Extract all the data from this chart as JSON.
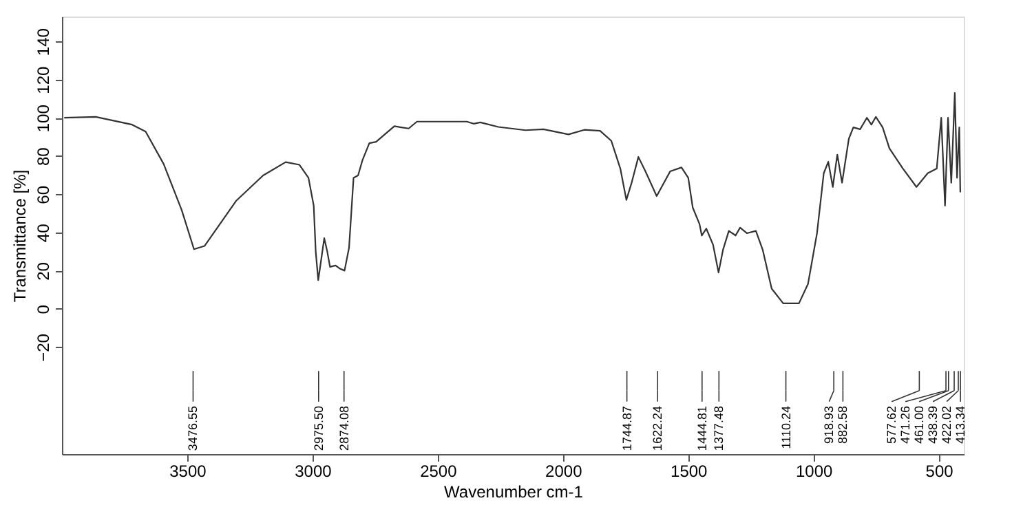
{
  "chart_data": {
    "type": "line",
    "xlabel": "Wavenumber cm-1",
    "ylabel": "Transmittance [%]",
    "xlim": [
      4000,
      400
    ],
    "ylim": [
      -76,
      153
    ],
    "xticks": [
      3500,
      3000,
      2500,
      2000,
      1500,
      1000,
      500
    ],
    "yticks": [
      -20,
      0,
      20,
      40,
      60,
      80,
      100,
      120,
      140
    ],
    "grid": false,
    "marker": "none",
    "line_style": "solid",
    "x": [
      3991,
      3865,
      3720,
      3666,
      3594,
      3522,
      3473,
      3431,
      3305,
      3197,
      3107,
      3052,
      3016,
      2995,
      2987,
      2977,
      2966,
      2953,
      2941,
      2930,
      2908,
      2890,
      2872,
      2854,
      2836,
      2818,
      2800,
      2773,
      2746,
      2710,
      2673,
      2646,
      2616,
      2583,
      2384,
      2357,
      2330,
      2258,
      2150,
      2078,
      1978,
      1915,
      1852,
      1807,
      1771,
      1747,
      1726,
      1699,
      1671,
      1626,
      1572,
      1527,
      1500,
      1482,
      1455,
      1446,
      1428,
      1401,
      1379,
      1361,
      1338,
      1311,
      1293,
      1266,
      1230,
      1203,
      1167,
      1121,
      1058,
      1022,
      986,
      959,
      941,
      923,
      905,
      886,
      859,
      841,
      814,
      787,
      769,
      751,
      724,
      697,
      643,
      589,
      544,
      508,
      490,
      475,
      463,
      450,
      436,
      427,
      418,
      414
    ],
    "series": [
      {
        "color": "#333333",
        "values": [
          100,
          100.5,
          96.4,
          92.8,
          75.8,
          51.7,
          31.2,
          32.9,
          56.5,
          69.8,
          76.8,
          75.4,
          68.6,
          54,
          30,
          15,
          25,
          37,
          30,
          22,
          22.7,
          21,
          20,
          32,
          68.6,
          69.8,
          78,
          86.7,
          87.4,
          91.5,
          95.6,
          95,
          94.4,
          98,
          98,
          96.9,
          97.6,
          95.2,
          93.5,
          94,
          91.3,
          93.7,
          93.2,
          87.9,
          73.4,
          57,
          66,
          79.5,
          72,
          59,
          72,
          74,
          68.6,
          53,
          44.4,
          38.4,
          42,
          33.6,
          19,
          31,
          40.8,
          38.4,
          42.5,
          39.6,
          40.8,
          31,
          10.6,
          2.9,
          2.9,
          13,
          39.6,
          71,
          77,
          63.8,
          80.7,
          66,
          89,
          95,
          94,
          100,
          96.4,
          100.5,
          95,
          84,
          73.4,
          63.8,
          71,
          73.4,
          100,
          54,
          100,
          66,
          113,
          68.6,
          95,
          61
        ]
      }
    ],
    "annotations": [
      {
        "text": "3476.55",
        "x": 3476.55
      },
      {
        "text": "2975.50",
        "x": 2975.5
      },
      {
        "text": "2874.08",
        "x": 2874.08
      },
      {
        "text": "1744.87",
        "x": 1744.87
      },
      {
        "text": "1622.24",
        "x": 1622.24
      },
      {
        "text": "1444.81",
        "x": 1444.81
      },
      {
        "text": "1377.48",
        "x": 1377.48
      },
      {
        "text": "1110.24",
        "x": 1110.24
      },
      {
        "text": "918.93",
        "x": 918.93
      },
      {
        "text": "882.58",
        "x": 882.58
      },
      {
        "text": "577.62",
        "x": 577.62
      },
      {
        "text": "471.26",
        "x": 471.26
      },
      {
        "text": "461.00",
        "x": 461.0
      },
      {
        "text": "438.39",
        "x": 438.39
      },
      {
        "text": "422.02",
        "x": 422.02
      },
      {
        "text": "413.34",
        "x": 413.34
      }
    ]
  }
}
